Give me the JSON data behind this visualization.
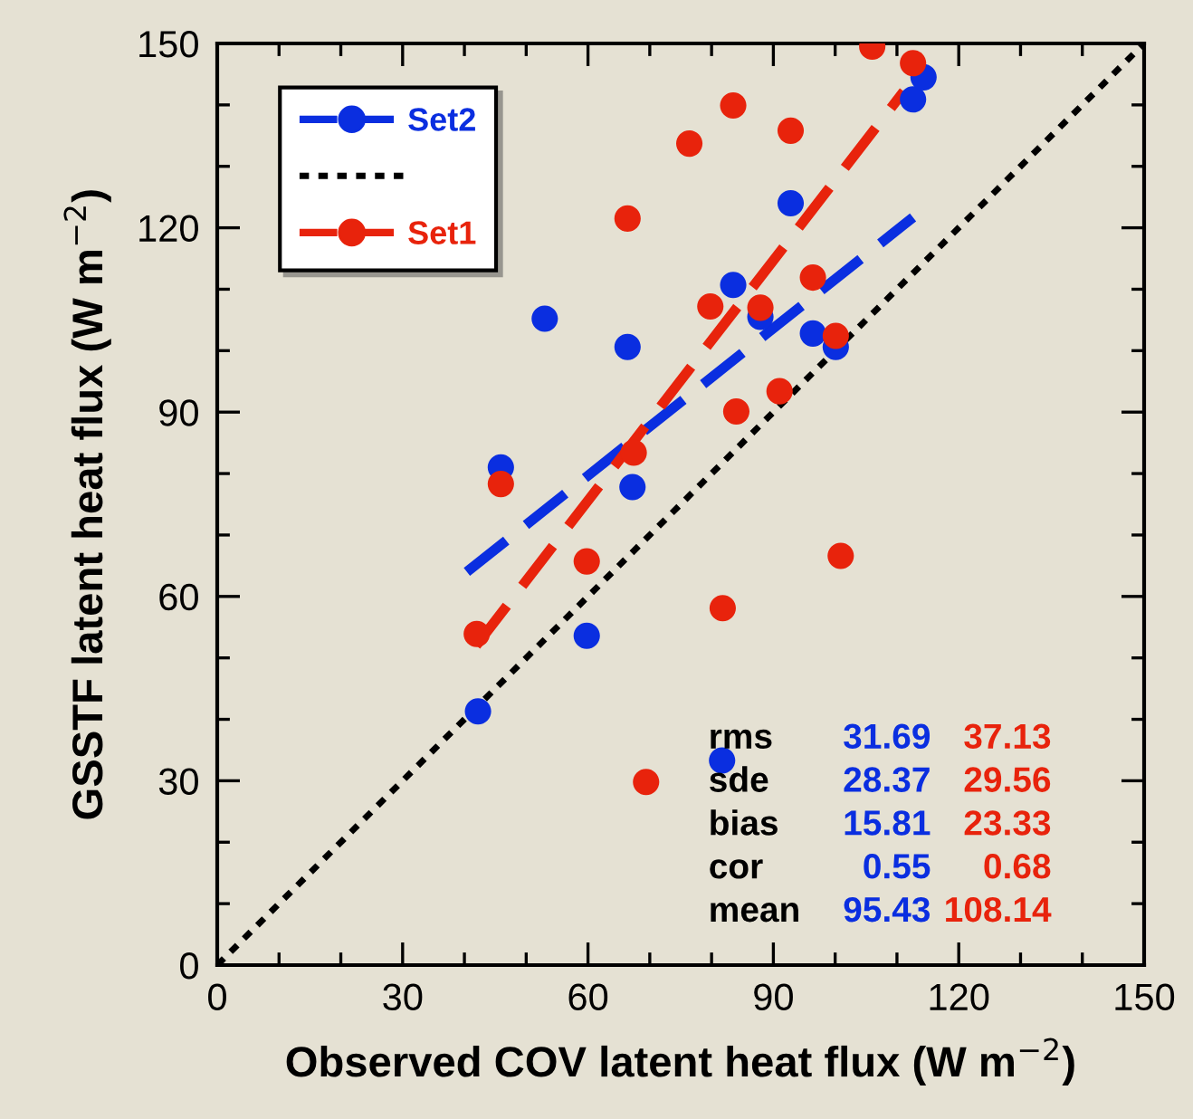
{
  "chart_data": {
    "type": "scatter",
    "xlabel": "Observed COV latent heat flux (W m$^{−2}$)",
    "ylabel": "GSSTF latent heat flux (W m$^{−2}$)",
    "xlim": [
      0,
      150
    ],
    "ylim": [
      0,
      150
    ],
    "xticks": [
      0,
      {
        "value": 10,
        "label": null
      },
      {
        "value": 20,
        "label": null
      },
      30,
      {
        "value": 40,
        "label": null
      },
      {
        "value": 50,
        "label": null
      },
      60,
      {
        "value": 70,
        "label": null
      },
      {
        "value": 80,
        "label": null
      },
      90,
      {
        "value": 100,
        "label": null
      },
      {
        "value": 110,
        "label": null
      },
      120,
      {
        "value": 130,
        "label": null
      },
      {
        "value": 140,
        "label": null
      },
      150
    ],
    "yticks": [
      0,
      {
        "value": 10,
        "label": null
      },
      {
        "value": 20,
        "label": null
      },
      30,
      {
        "value": 40,
        "label": null
      },
      {
        "value": 50,
        "label": null
      },
      60,
      {
        "value": 70,
        "label": null
      },
      {
        "value": 80,
        "label": null
      },
      90,
      {
        "value": 100,
        "label": null
      },
      {
        "value": 110,
        "label": null
      },
      120,
      {
        "value": 130,
        "label": null
      },
      {
        "value": 140,
        "label": null
      },
      150
    ],
    "grid": false,
    "legend": "top left",
    "series": [
      {
        "name": "Set2",
        "marker": "circle",
        "color": "#0a2ee0",
        "x": [
          42.2,
          45.9,
          53.0,
          59.8,
          66.4,
          67.2,
          81.7,
          83.5,
          87.9,
          92.8,
          96.4,
          100.1,
          112.6,
          114.3
        ],
        "values": [
          41.3,
          81.0,
          105.2,
          53.6,
          100.6,
          77.8,
          33.3,
          110.7,
          105.5,
          124.0,
          102.8,
          100.6,
          140.9,
          144.5
        ]
      },
      {
        "type": "line",
        "color": "#0a2ee0",
        "line_style": "dashed",
        "x": [
          40.4,
          112.6
        ],
        "values": [
          64.0,
          121.7
        ]
      },
      {
        "type": "line",
        "color": "#000000",
        "line_style": "dotted",
        "x": [
          0,
          150
        ],
        "values": [
          0,
          150
        ]
      },
      {
        "name": "Set1",
        "marker": "circle",
        "color": "#e8230c",
        "x": [
          42.0,
          45.9,
          59.8,
          66.4,
          67.4,
          69.4,
          76.4,
          79.8,
          81.8,
          83.5,
          84.0,
          87.9,
          91.0,
          92.8,
          96.4,
          100.1,
          100.9,
          106.0,
          112.6
        ],
        "values": [
          53.9,
          78.3,
          65.7,
          121.5,
          83.4,
          29.8,
          133.7,
          107.2,
          58.1,
          139.9,
          90.1,
          107.0,
          93.4,
          135.8,
          111.9,
          102.4,
          66.6,
          149.5,
          146.8
        ]
      },
      {
        "type": "line",
        "color": "#e8230c",
        "line_style": "dashed",
        "x": [
          41.9,
          111.1
        ],
        "values": [
          52.0,
          142.2
        ]
      }
    ],
    "annotations": [
      "rms",
      "31.69",
      "37.13",
      "sde",
      "28.37",
      "29.56",
      "bias",
      "15.81",
      "23.33",
      "cor",
      "0.55",
      "0.68",
      "mean",
      "95.43",
      "108.14"
    ]
  }
}
